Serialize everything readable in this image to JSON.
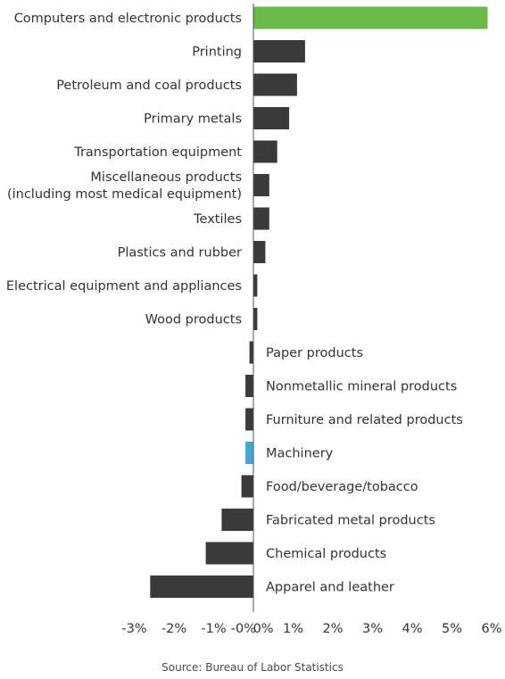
{
  "chart_data": {
    "type": "bar",
    "orientation": "horizontal",
    "categories": [
      "Computers and electronic products",
      "Printing",
      "Petroleum and coal products",
      "Primary metals",
      "Transportation equipment",
      "Miscellaneous products\n(including most medical equipment)",
      "Textiles",
      "Plastics and rubber",
      "Electrical equipment and appliances",
      "Wood products",
      "Paper products",
      "Nonmetallic mineral products",
      "Furniture and related products",
      "Machinery",
      "Food/beverage/tobacco",
      "Fabricated metal products",
      "Chemical products",
      "Apparel and leather"
    ],
    "values": [
      5.9,
      1.3,
      1.1,
      0.9,
      0.6,
      0.4,
      0.4,
      0.3,
      0.1,
      0.1,
      -0.1,
      -0.2,
      -0.2,
      -0.2,
      -0.3,
      -0.8,
      -1.2,
      -2.6
    ],
    "highlights": {
      "0": "#6ab845",
      "13": "#3aa8dc"
    },
    "default_color": "#3a3a3c",
    "xlim": [
      -3,
      6
    ],
    "xticks": [
      "-3%",
      "-2%",
      "-1%",
      "-0%",
      "0%",
      "1%",
      "2%",
      "3%",
      "4%",
      "5%",
      "6%"
    ],
    "xtick_values": [
      -3,
      -2,
      -1,
      -0.0001,
      0.0001,
      1,
      2,
      3,
      4,
      5,
      6
    ],
    "grid": false,
    "legend": "none"
  },
  "source": "Source: Bureau of Labor Statistics"
}
